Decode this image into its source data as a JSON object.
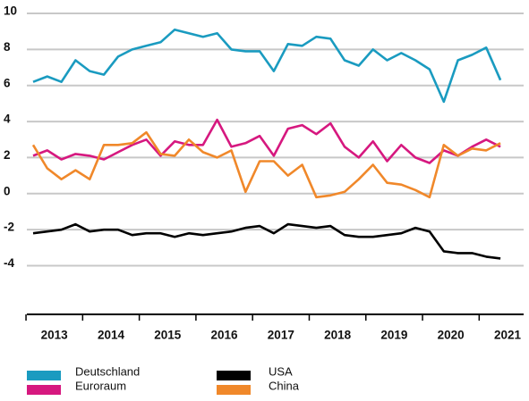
{
  "chart_data": {
    "type": "line",
    "x": [
      2013,
      2013.25,
      2013.5,
      2013.75,
      2014,
      2014.25,
      2014.5,
      2014.75,
      2015,
      2015.25,
      2015.5,
      2015.75,
      2016,
      2016.25,
      2016.5,
      2016.75,
      2017,
      2017.25,
      2017.5,
      2017.75,
      2018,
      2018.25,
      2018.5,
      2018.75,
      2019,
      2019.25,
      2019.5,
      2019.75,
      2020,
      2020.25,
      2020.5,
      2020.75,
      2021,
      2021.25
    ],
    "series": [
      {
        "name": "Deutschland",
        "color": "#1a9bc0",
        "values": [
          6.2,
          6.5,
          6.2,
          7.4,
          6.8,
          6.6,
          7.6,
          8.0,
          8.2,
          8.4,
          9.1,
          8.9,
          8.7,
          8.9,
          8.0,
          7.9,
          7.9,
          6.8,
          8.3,
          8.2,
          8.7,
          8.6,
          7.4,
          7.1,
          8.0,
          7.4,
          7.8,
          7.4,
          6.9,
          5.1,
          7.4,
          7.7,
          8.1,
          6.3
        ]
      },
      {
        "name": "Euroraum",
        "color": "#d6187f",
        "values": [
          2.1,
          2.4,
          1.9,
          2.2,
          2.1,
          1.9,
          2.3,
          2.7,
          3.0,
          2.1,
          2.9,
          2.7,
          2.7,
          4.1,
          2.6,
          2.8,
          3.2,
          2.1,
          3.6,
          3.8,
          3.3,
          3.9,
          2.6,
          2.0,
          2.9,
          1.8,
          2.7,
          2.0,
          1.7,
          2.4,
          2.1,
          2.6,
          3.0,
          2.6
        ]
      },
      {
        "name": "China",
        "color": "#f0882a",
        "values": [
          2.7,
          1.4,
          0.8,
          1.3,
          0.8,
          2.7,
          2.7,
          2.8,
          3.4,
          2.2,
          2.1,
          3.0,
          2.3,
          2.0,
          2.4,
          0.1,
          1.8,
          1.8,
          1.0,
          1.6,
          -0.2,
          -0.1,
          0.1,
          0.8,
          1.6,
          0.6,
          0.5,
          0.2,
          -0.2,
          2.7,
          2.1,
          2.5,
          2.4,
          2.8
        ]
      },
      {
        "name": "USA",
        "color": "#000000",
        "values": [
          -2.2,
          -2.1,
          -2.0,
          -1.7,
          -2.1,
          -2.0,
          -2.0,
          -2.3,
          -2.2,
          -2.2,
          -2.4,
          -2.2,
          -2.3,
          -2.2,
          -2.1,
          -1.9,
          -1.8,
          -2.2,
          -1.7,
          -1.8,
          -1.9,
          -1.8,
          -2.3,
          -2.4,
          -2.4,
          -2.3,
          -2.2,
          -1.9,
          -2.1,
          -3.2,
          -3.3,
          -3.3,
          -3.5,
          -3.6
        ]
      }
    ],
    "xlim": [
      2012.89,
      2021.66
    ],
    "xticks": [
      2013,
      2014,
      2015,
      2016,
      2017,
      2018,
      2019,
      2020,
      2021
    ],
    "ylim": [
      -6.7,
      10
    ],
    "yticks": [
      -4,
      -2,
      0,
      2,
      4,
      6,
      8,
      10
    ],
    "grid": true
  }
}
